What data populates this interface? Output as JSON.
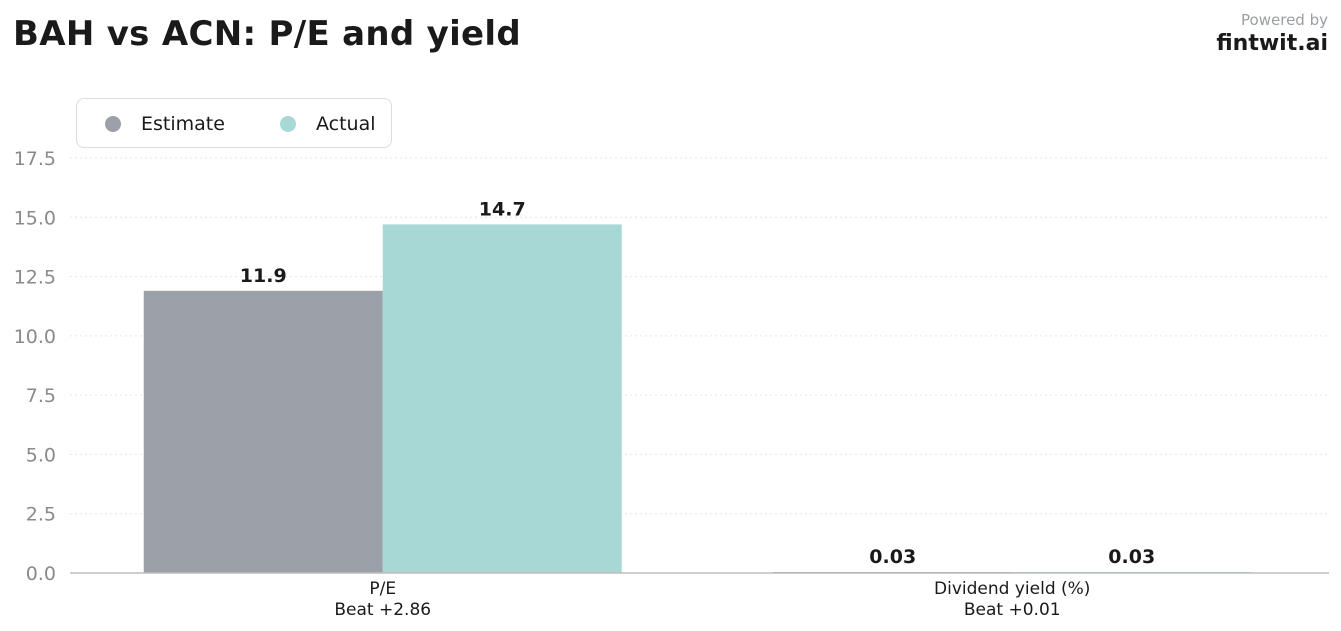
{
  "header": {
    "title": "BAH vs ACN: P/E and yield",
    "powered_by": "Powered by",
    "brand": "fintwit.ai"
  },
  "colors": {
    "estimate": "#9ca0a8",
    "actual": "#a8d8d5",
    "grid": "#e6e6e6",
    "axis": "#bdbdbd",
    "tick_text": "#8a8a8a",
    "label_text": "#1a1a1a"
  },
  "chart_data": {
    "type": "bar",
    "title": "BAH vs ACN: P/E and yield",
    "categories": [
      "P/E",
      "Dividend yield (%)"
    ],
    "category_sublabels": [
      "Beat +2.86",
      "Beat +0.01"
    ],
    "series": [
      {
        "name": "Estimate",
        "values": [
          11.9,
          0.03
        ],
        "labels": [
          "11.9",
          "0.03"
        ]
      },
      {
        "name": "Actual",
        "values": [
          14.7,
          0.03
        ],
        "labels": [
          "14.7",
          "0.03"
        ]
      }
    ],
    "ylim": [
      0,
      17.5
    ],
    "yticks": [
      0,
      2.5,
      5,
      7.5,
      10,
      12.5,
      15,
      17.5
    ],
    "ytick_labels": [
      "0.0",
      "2.5",
      "5.0",
      "7.5",
      "10.0",
      "12.5",
      "15.0",
      "17.5"
    ],
    "grid": true,
    "legend_position": "top-left"
  }
}
